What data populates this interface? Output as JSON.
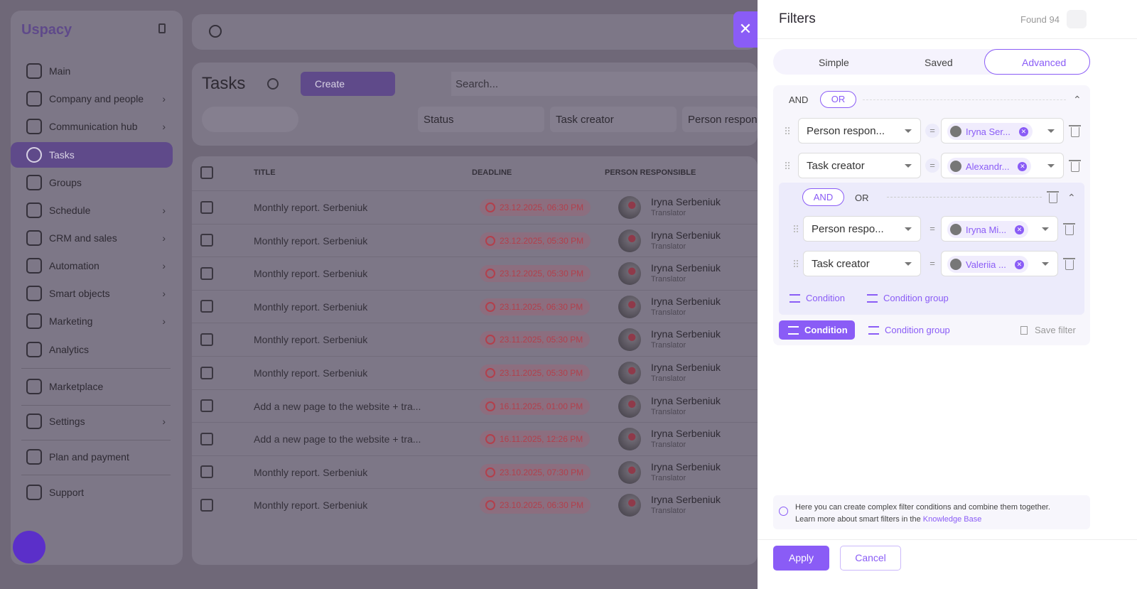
{
  "brand": {
    "logo": "Uspacy"
  },
  "sidebar": {
    "items": [
      {
        "label": "Main",
        "icon": "home-icon",
        "chevron": false
      },
      {
        "label": "Company and people",
        "icon": "building-icon",
        "chevron": true
      },
      {
        "label": "Communication hub",
        "icon": "chat-icon",
        "chevron": true
      },
      {
        "label": "Tasks",
        "icon": "check-circle-icon",
        "chevron": false,
        "active": true
      },
      {
        "label": "Groups",
        "icon": "users-icon",
        "chevron": false
      },
      {
        "label": "Schedule",
        "icon": "calendar-icon",
        "chevron": true
      },
      {
        "label": "CRM and sales",
        "icon": "funnel-icon",
        "chevron": true
      },
      {
        "label": "Automation",
        "icon": "lightning-icon",
        "chevron": true
      },
      {
        "label": "Smart objects",
        "icon": "scan-icon",
        "chevron": true
      },
      {
        "label": "Marketing",
        "icon": "megaphone-icon",
        "chevron": true
      },
      {
        "label": "Analytics",
        "icon": "chart-icon",
        "chevron": false
      },
      {
        "label": "Marketplace",
        "icon": "store-icon",
        "chevron": false
      },
      {
        "label": "Settings",
        "icon": "gear-icon",
        "chevron": true
      },
      {
        "label": "Plan and payment",
        "icon": "wallet-icon",
        "chevron": false
      },
      {
        "label": "Support",
        "icon": "support-icon",
        "chevron": false
      }
    ]
  },
  "tasks": {
    "title": "Tasks",
    "create_label": "Create",
    "search_placeholder": "Search...",
    "filters": [
      "Status",
      "Task creator",
      "Person respon"
    ],
    "columns": [
      "TITLE",
      "DEADLINE",
      "PERSON RESPONSIBLE"
    ],
    "rows": [
      {
        "title": "Monthly report. Serbeniuk",
        "deadline": "23.12.2025, 06:30 PM",
        "person": "Iryna Serbeniuk",
        "role": "Translator"
      },
      {
        "title": "Monthly report. Serbeniuk",
        "deadline": "23.12.2025, 05:30 PM",
        "person": "Iryna Serbeniuk",
        "role": "Translator"
      },
      {
        "title": "Monthly report. Serbeniuk",
        "deadline": "23.12.2025, 05:30 PM",
        "person": "Iryna Serbeniuk",
        "role": "Translator"
      },
      {
        "title": "Monthly report. Serbeniuk",
        "deadline": "23.11.2025, 06:30 PM",
        "person": "Iryna Serbeniuk",
        "role": "Translator"
      },
      {
        "title": "Monthly report. Serbeniuk",
        "deadline": "23.11.2025, 05:30 PM",
        "person": "Iryna Serbeniuk",
        "role": "Translator"
      },
      {
        "title": "Monthly report. Serbeniuk",
        "deadline": "23.11.2025, 05:30 PM",
        "person": "Iryna Serbeniuk",
        "role": "Translator"
      },
      {
        "title": "Add a new page to the website + tra...",
        "deadline": "16.11.2025, 01:00 PM",
        "person": "Iryna Serbeniuk",
        "role": "Translator"
      },
      {
        "title": "Add a new page to the website + tra...",
        "deadline": "16.11.2025, 12:26 PM",
        "person": "Iryna Serbeniuk",
        "role": "Translator"
      },
      {
        "title": "Monthly report. Serbeniuk",
        "deadline": "23.10.2025, 07:30 PM",
        "person": "Iryna Serbeniuk",
        "role": "Translator"
      },
      {
        "title": "Monthly report. Serbeniuk",
        "deadline": "23.10.2025, 06:30 PM",
        "person": "Iryna Serbeniuk",
        "role": "Translator"
      }
    ]
  },
  "filters": {
    "title": "Filters",
    "found": "Found 94",
    "tabs": [
      "Simple",
      "Saved",
      "Advanced"
    ],
    "active_tab": "Advanced",
    "root": {
      "ops": [
        "AND",
        "OR"
      ],
      "active_op": "OR",
      "conditions": [
        {
          "field": "Person respon...",
          "value": "Iryna Ser..."
        },
        {
          "field": "Task creator",
          "value": "Alexandr..."
        }
      ],
      "group": {
        "ops": [
          "AND",
          "OR"
        ],
        "active_op": "AND",
        "conditions": [
          {
            "field": "Person respo...",
            "value": "Iryna Mi..."
          },
          {
            "field": "Task creator",
            "value": "Valeriia ..."
          }
        ],
        "add_condition": "Condition",
        "add_group": "Condition group"
      }
    },
    "add_condition": "Condition",
    "add_group": "Condition group",
    "save_filter": "Save filter",
    "help_text": "Here you can create complex filter conditions and combine them together.",
    "help_text2": "Learn more about smart filters in the",
    "help_link": "Knowledge Base",
    "apply": "Apply",
    "cancel": "Cancel",
    "accent": "#8a5cf6"
  }
}
